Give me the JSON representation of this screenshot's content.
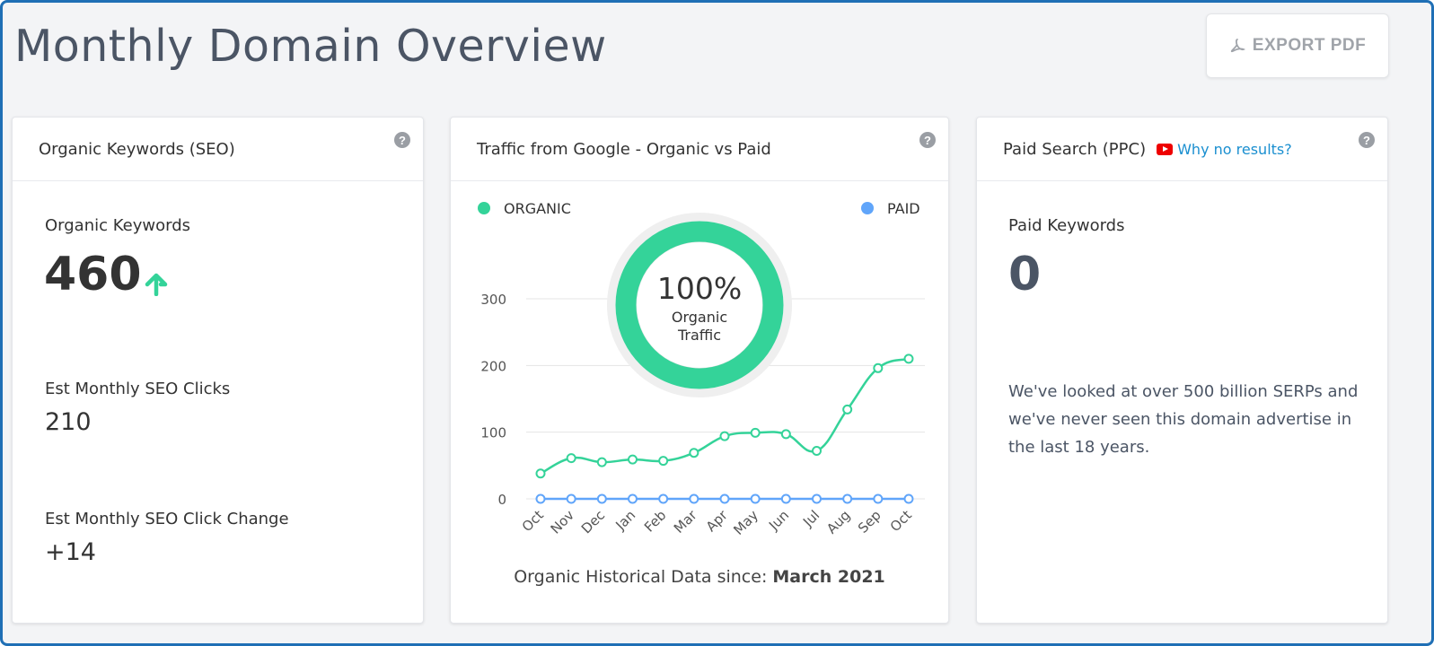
{
  "page": {
    "title": "Monthly Domain Overview",
    "export_label": "EXPORT PDF"
  },
  "seo_card": {
    "title": "Organic Keywords (SEO)",
    "organic_keywords_label": "Organic Keywords",
    "organic_keywords_value": "460",
    "clicks_label": "Est Monthly SEO Clicks",
    "clicks_value": "210",
    "click_change_label": "Est Monthly SEO Click Change",
    "click_change_value": "+14"
  },
  "traffic_card": {
    "title": "Traffic from Google - Organic vs Paid",
    "legend_organic": "ORGANIC",
    "legend_paid": "PAID",
    "donut_percent": "100%",
    "donut_label_1": "Organic",
    "donut_label_2": "Traffic",
    "donut_fraction": 1.0,
    "footer_prefix": "Organic Historical Data since: ",
    "footer_date": "March 2021"
  },
  "ppc_card": {
    "title": "Paid Search (PPC)",
    "why_link": "Why no results?",
    "paid_keywords_label": "Paid Keywords",
    "paid_keywords_value": "0",
    "message": "We've looked at over 500 billion SERPs and we've never seen this domain advertise in the last 18 years."
  },
  "colors": {
    "organic": "#34d399",
    "paid": "#60a5fa",
    "accent_up": "#34d399"
  },
  "help_icon": "?",
  "chart_data": {
    "type": "line",
    "categories": [
      "Oct",
      "Nov",
      "Dec",
      "Jan",
      "Feb",
      "Mar",
      "Apr",
      "May",
      "Jun",
      "Jul",
      "Aug",
      "Sep",
      "Oct"
    ],
    "series": [
      {
        "name": "ORGANIC",
        "values": [
          38,
          61,
          55,
          59,
          57,
          69,
          94,
          99,
          97,
          72,
          134,
          196,
          210
        ]
      },
      {
        "name": "PAID",
        "values": [
          0,
          0,
          0,
          0,
          0,
          0,
          0,
          0,
          0,
          0,
          0,
          0,
          0
        ]
      }
    ],
    "yticks": [
      0,
      100,
      200,
      300
    ],
    "ylim": [
      0,
      300
    ],
    "grid": true,
    "legend": "top"
  }
}
